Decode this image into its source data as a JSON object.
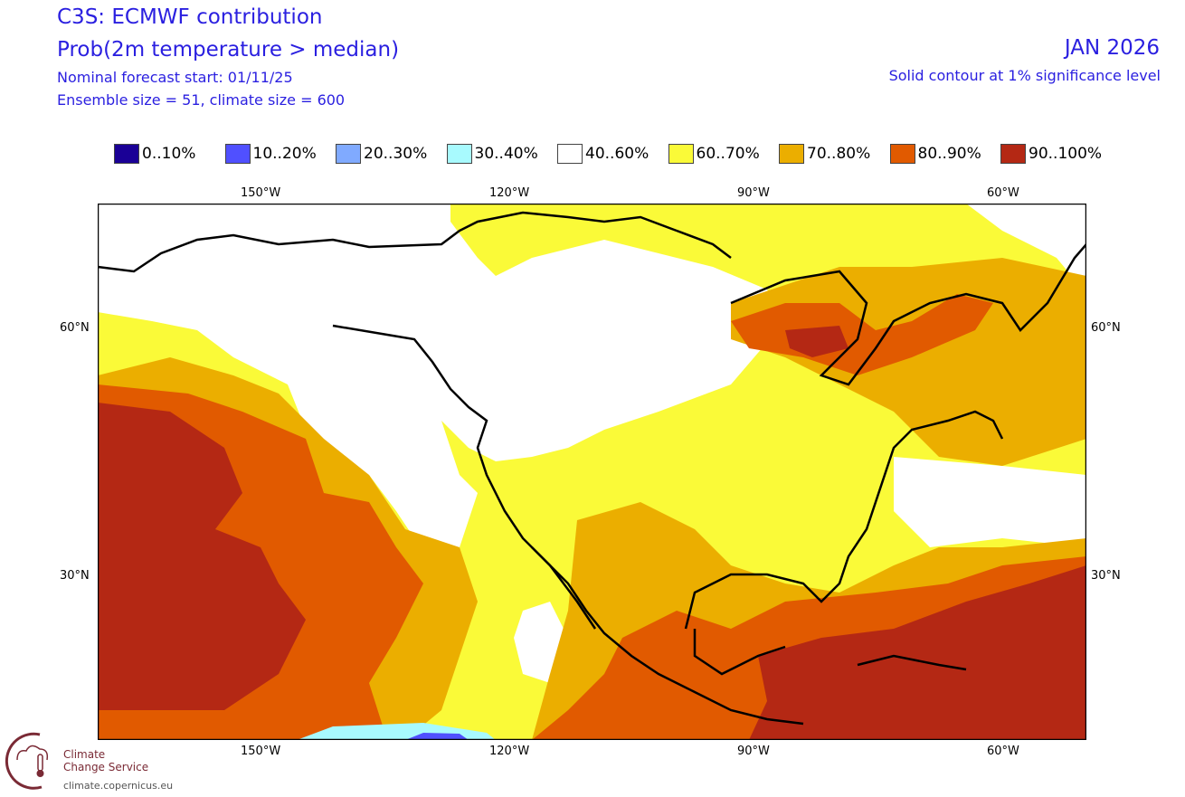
{
  "header": {
    "title": "C3S: ECMWF contribution",
    "variable": "Prob(2m temperature > median)",
    "forecast_start": "Nominal forecast start: 01/11/25",
    "ensemble": "Ensemble size = 51, climate size = 600",
    "valid_month": "JAN 2026",
    "significance": "Solid contour at 1% significance level"
  },
  "legend": [
    {
      "label": "0..10%",
      "color": "#1a0096"
    },
    {
      "label": "10..20%",
      "color": "#5050ff"
    },
    {
      "label": "20..30%",
      "color": "#80aaff"
    },
    {
      "label": "30..40%",
      "color": "#a8fafe"
    },
    {
      "label": "40..60%",
      "color": "#ffffff"
    },
    {
      "label": "60..70%",
      "color": "#fafa38"
    },
    {
      "label": "70..80%",
      "color": "#ebae00"
    },
    {
      "label": "80..90%",
      "color": "#e15a00"
    },
    {
      "label": "90..100%",
      "color": "#b42814"
    }
  ],
  "axes": {
    "lon_top": [
      "150°W",
      "120°W",
      "90°W",
      "60°W"
    ],
    "lon_bottom": [
      "150°W",
      "120°W",
      "90°W",
      "60°W"
    ],
    "lat_left": [
      "60°N",
      "30°N"
    ],
    "lat_right": [
      "60°N",
      "30°N"
    ]
  },
  "logo": {
    "line1": "Climate",
    "line2": "Change Service",
    "url": "climate.copernicus.eu"
  }
}
